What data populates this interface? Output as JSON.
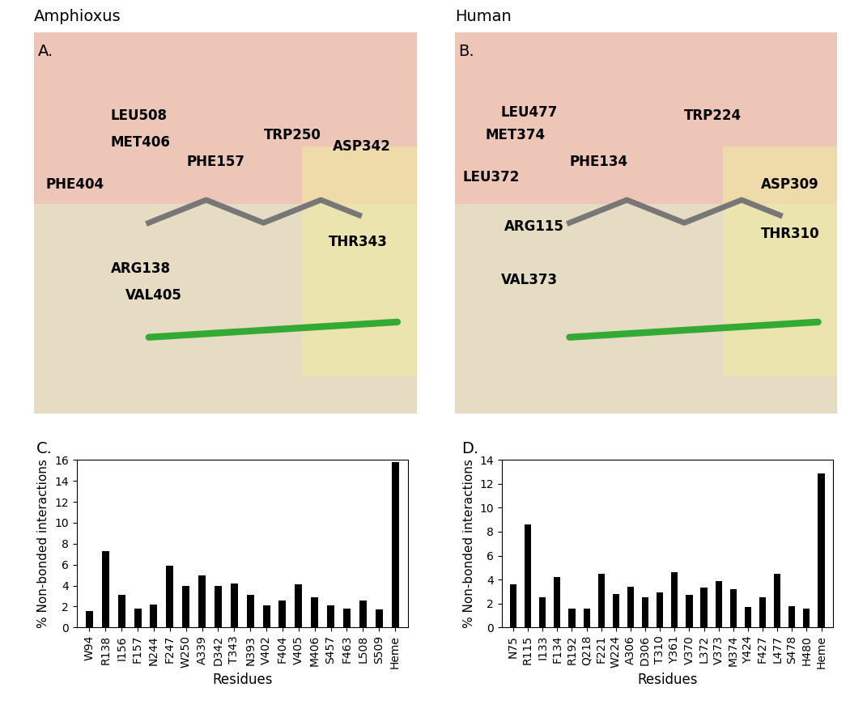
{
  "image_panels": [
    {
      "title": "Amphioxus",
      "letter": "A.",
      "labels": [
        "LEU508",
        "MET406",
        "PHE157",
        "PHE404",
        "TRP250",
        "ASP342",
        "THR343",
        "ARG138",
        "VAL405"
      ]
    },
    {
      "title": "Human",
      "letter": "B.",
      "labels": [
        "LEU477",
        "MET374",
        "TRP224",
        "PHE134",
        "LEU372",
        "ASP309",
        "ARG115",
        "THR310",
        "VAL373"
      ]
    }
  ],
  "chart_data": [
    {
      "type": "bar",
      "title": "C.",
      "x_label": "Residues",
      "y_label": "% Non-bonded interactions",
      "categories": [
        "W94",
        "R138",
        "I156",
        "F157",
        "N244",
        "F247",
        "W250",
        "A339",
        "D342",
        "T343",
        "N393",
        "V402",
        "F404",
        "V405",
        "M406",
        "S457",
        "F463",
        "L508",
        "S509",
        "Heme"
      ],
      "values": [
        1.6,
        7.3,
        3.1,
        1.8,
        2.2,
        5.9,
        4.0,
        5.0,
        4.0,
        4.2,
        3.1,
        2.1,
        2.6,
        4.1,
        2.9,
        2.1,
        1.8,
        2.6,
        1.7,
        15.8
      ],
      "color": "#000000",
      "ylim": [
        0,
        16
      ],
      "yticks": [
        0,
        2,
        4,
        6,
        8,
        10,
        12,
        14,
        16
      ],
      "grid": false
    },
    {
      "type": "bar",
      "title": "D.",
      "x_label": "Residues",
      "y_label": "% Non-bonded interactions",
      "categories": [
        "N75",
        "R115",
        "I133",
        "F134",
        "R192",
        "Q218",
        "F221",
        "W224",
        "A306",
        "D306",
        "T310",
        "Y361",
        "V370",
        "L372",
        "V373",
        "M374",
        "Y424",
        "F427",
        "L477",
        "S478",
        "H480",
        "Heme"
      ],
      "values": [
        3.6,
        8.6,
        2.5,
        4.2,
        1.6,
        1.6,
        4.5,
        2.8,
        3.4,
        2.5,
        2.9,
        4.6,
        2.7,
        3.3,
        3.9,
        3.2,
        1.7,
        2.5,
        4.5,
        1.8,
        1.6,
        12.9
      ],
      "color": "#000000",
      "ylim": [
        0,
        14
      ],
      "yticks": [
        0,
        2,
        4,
        6,
        8,
        10,
        12,
        14
      ],
      "grid": false
    }
  ]
}
